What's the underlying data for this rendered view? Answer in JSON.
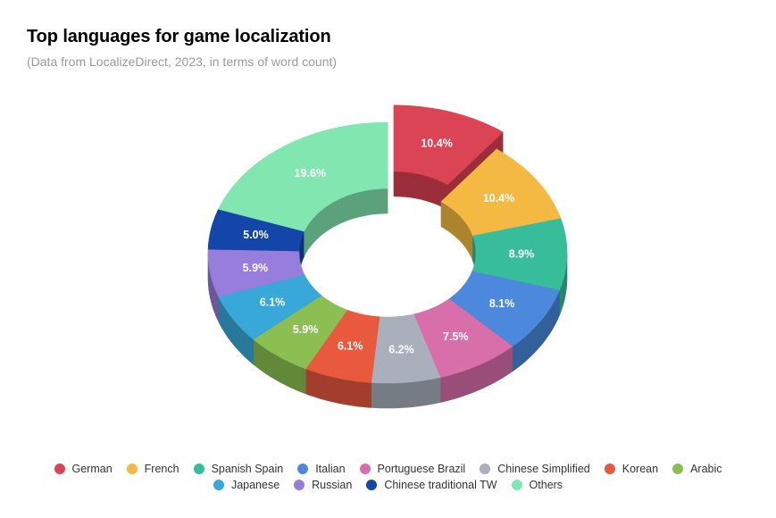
{
  "header": {
    "title": "Top languages for game localization",
    "subtitle": "(Data from LocalizeDirect, 2023, in terms of word count)"
  },
  "chart_data": {
    "type": "pie",
    "variant": "3d-donut",
    "title": "Top languages for game localization",
    "subtitle": "(Data from LocalizeDirect, 2023, in terms of word count)",
    "unit": "%",
    "exploded": "German",
    "legend_position": "bottom",
    "slices": [
      {
        "label": "German",
        "value": 10.4,
        "text": "10.4%",
        "color": "#db4455",
        "side": "#9b2e3a"
      },
      {
        "label": "French",
        "value": 10.4,
        "text": "10.4%",
        "color": "#f4b942",
        "side": "#ad842e"
      },
      {
        "label": "Spanish Spain",
        "value": 8.9,
        "text": "8.9%",
        "color": "#37bd9a",
        "side": "#26876c"
      },
      {
        "label": "Italian",
        "value": 8.1,
        "text": "8.1%",
        "color": "#4c89dd",
        "side": "#32609a"
      },
      {
        "label": "Portuguese Brazil",
        "value": 7.5,
        "text": "7.5%",
        "color": "#d86eaa",
        "side": "#984e78"
      },
      {
        "label": "Chinese Simplified",
        "value": 6.2,
        "text": "6.2%",
        "color": "#a9b0bb",
        "side": "#767c84"
      },
      {
        "label": "Korean",
        "value": 6.1,
        "text": "6.1%",
        "color": "#e8593e",
        "side": "#a43e2c"
      },
      {
        "label": "Arabic",
        "value": 5.9,
        "text": "5.9%",
        "color": "#8cbf51",
        "side": "#628839"
      },
      {
        "label": "Japanese",
        "value": 6.1,
        "text": "6.1%",
        "color": "#38a8d8",
        "side": "#277899"
      },
      {
        "label": "Russian",
        "value": 5.9,
        "text": "5.9%",
        "color": "#977ddc",
        "side": "#6a589b"
      },
      {
        "label": "Chinese traditional TW",
        "value": 5.0,
        "text": "5.0%",
        "color": "#1346a8",
        "side": "#0d3176"
      },
      {
        "label": "Others",
        "value": 19.6,
        "text": "19.6%",
        "color": "#82e6b0",
        "side": "#5ba17b"
      }
    ]
  },
  "legend": {
    "row1": [
      {
        "label": "German",
        "color": "#db4455"
      },
      {
        "label": "French",
        "color": "#f4b942"
      },
      {
        "label": "Spanish Spain",
        "color": "#37bd9a"
      },
      {
        "label": "Italian",
        "color": "#4c89dd"
      },
      {
        "label": "Portuguese Brazil",
        "color": "#d86eaa"
      },
      {
        "label": "Chinese Simplified",
        "color": "#a9b0bb"
      },
      {
        "label": "Korean",
        "color": "#e8593e"
      },
      {
        "label": "Arabic",
        "color": "#8cbf51"
      }
    ],
    "row2": [
      {
        "label": "Japanese",
        "color": "#38a8d8"
      },
      {
        "label": "Russian",
        "color": "#977ddc"
      },
      {
        "label": "Chinese traditional TW",
        "color": "#1346a8"
      },
      {
        "label": "Others",
        "color": "#82e6b0"
      }
    ]
  }
}
